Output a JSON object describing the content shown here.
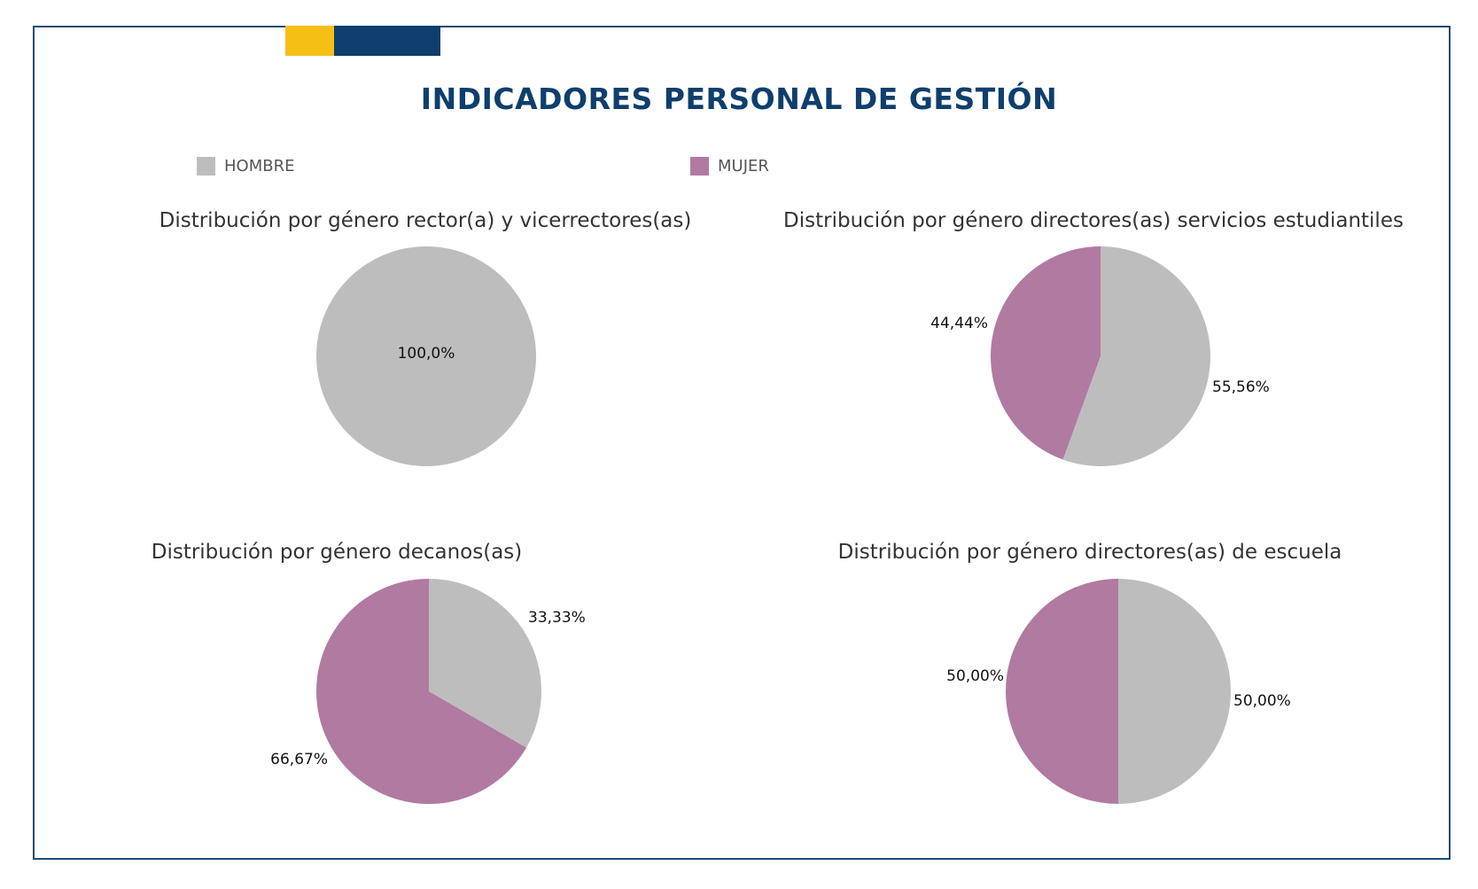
{
  "title": "INDICADORES PERSONAL DE GESTIÓN",
  "legend": [
    {
      "label": "HOMBRE",
      "color": "#bdbdbd"
    },
    {
      "label": "MUJER",
      "color": "#b07aa1"
    }
  ],
  "colors": {
    "frame": "#1f4a78",
    "accent_yellow": "#f5bf16",
    "accent_blue": "#0e3f6d",
    "title": "#0e3f6d",
    "hombre": "#bdbdbd",
    "mujer": "#b07aa1"
  },
  "chart_data": [
    {
      "type": "pie",
      "title": "Distribución por género rector(a) y vicerrectores(as)",
      "categories": [
        "HOMBRE",
        "MUJER"
      ],
      "values": [
        100.0,
        0.0
      ],
      "labels": [
        "100,0%",
        ""
      ]
    },
    {
      "type": "pie",
      "title": "Distribución por género directores(as) servicios estudiantiles",
      "categories": [
        "HOMBRE",
        "MUJER"
      ],
      "values": [
        55.56,
        44.44
      ],
      "labels": [
        "55,56%",
        "44,44%"
      ]
    },
    {
      "type": "pie",
      "title": "Distribución por género decanos(as)",
      "categories": [
        "HOMBRE",
        "MUJER"
      ],
      "values": [
        33.33,
        66.67
      ],
      "labels": [
        "33,33%",
        "66,67%"
      ]
    },
    {
      "type": "pie",
      "title": "Distribución por género directores(as) de escuela",
      "categories": [
        "HOMBRE",
        "MUJER"
      ],
      "values": [
        50.0,
        50.0
      ],
      "labels": [
        "50,00%",
        "50,00%"
      ]
    }
  ]
}
